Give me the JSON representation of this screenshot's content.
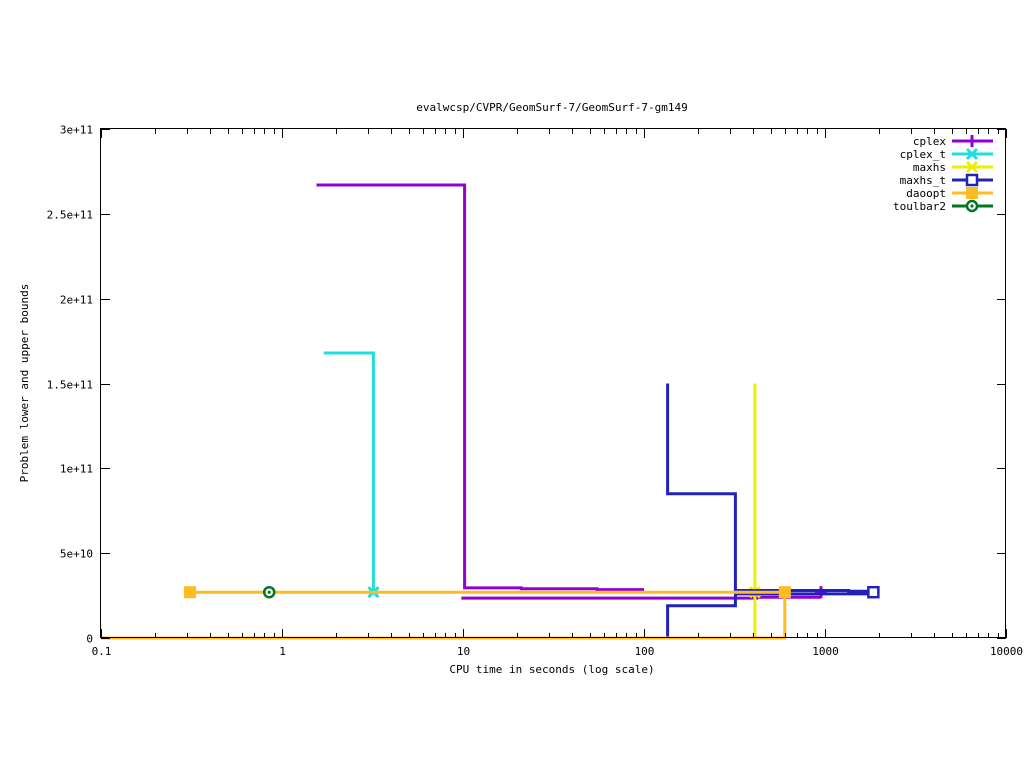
{
  "chart_data": {
    "type": "line",
    "title": "evalwcsp/CVPR/GeomSurf-7/GeomSurf-7-gm149",
    "xlabel": "CPU time in seconds (log scale)",
    "ylabel": "Problem lower and upper bounds",
    "x_scale": "log",
    "xlim": [
      0.1,
      10000
    ],
    "ylim": [
      0,
      300000000000
    ],
    "x_ticks": [
      {
        "value": 0.1,
        "label": "0.1"
      },
      {
        "value": 1,
        "label": "1"
      },
      {
        "value": 10,
        "label": "10"
      },
      {
        "value": 100,
        "label": "100"
      },
      {
        "value": 1000,
        "label": "1000"
      },
      {
        "value": 10000,
        "label": "10000"
      }
    ],
    "y_ticks": [
      {
        "value": 0,
        "label": "0"
      },
      {
        "value": 50000000000,
        "label": "5e+10"
      },
      {
        "value": 100000000000,
        "label": "1e+11"
      },
      {
        "value": 150000000000,
        "label": "1.5e+11"
      },
      {
        "value": 200000000000,
        "label": "2e+11"
      },
      {
        "value": 250000000000,
        "label": "2.5e+11"
      },
      {
        "value": 300000000000,
        "label": "3e+11"
      }
    ],
    "grid": false,
    "legend_position": "top-right",
    "series": [
      {
        "name": "cplex",
        "color": "#9400d3",
        "marker": "plus",
        "upper": [
          [
            1.55,
            267000000000
          ],
          [
            10.2,
            267000000000
          ],
          [
            10.2,
            29500000000
          ],
          [
            21,
            29500000000
          ],
          [
            21,
            29000000000
          ],
          [
            55,
            29000000000
          ],
          [
            55,
            28500000000
          ],
          [
            100,
            28500000000
          ]
        ],
        "lower": [
          [
            9.8,
            23500000000
          ],
          [
            420,
            23500000000
          ],
          [
            420,
            24000000000
          ],
          [
            950,
            24000000000
          ]
        ],
        "markers": [
          [
            950,
            27000000000
          ]
        ]
      },
      {
        "name": "cplex_t",
        "color": "#22dddd",
        "marker": "star",
        "upper": [
          [
            1.7,
            168000000000
          ],
          [
            3.2,
            168000000000
          ],
          [
            3.2,
            27000000000
          ]
        ],
        "lower": [],
        "markers": [
          [
            3.2,
            27000000000
          ]
        ]
      },
      {
        "name": "maxhs",
        "color": "#eeee00",
        "marker": "star",
        "upper": [
          [
            410,
            150000000000
          ],
          [
            410,
            27000000000
          ]
        ],
        "lower": [
          [
            0.1,
            0
          ],
          [
            410,
            0
          ],
          [
            410,
            27000000000
          ]
        ],
        "markers": [
          [
            410,
            27000000000
          ]
        ]
      },
      {
        "name": "maxhs_t",
        "color": "#2222bb",
        "marker": "open-square",
        "upper": [
          [
            135,
            150000000000
          ],
          [
            135,
            85000000000
          ],
          [
            320,
            85000000000
          ],
          [
            320,
            28000000000
          ],
          [
            1350,
            28000000000
          ],
          [
            1350,
            27500000000
          ],
          [
            1850,
            27500000000
          ]
        ],
        "lower": [
          [
            135,
            0
          ],
          [
            135,
            19000000000
          ],
          [
            320,
            19000000000
          ],
          [
            320,
            26000000000
          ],
          [
            1850,
            26000000000
          ]
        ],
        "markers": [
          [
            1850,
            27000000000
          ]
        ]
      },
      {
        "name": "daoopt",
        "color": "#ffbb22",
        "marker": "filled-square",
        "upper": [
          [
            0.31,
            27000000000
          ],
          [
            600,
            27000000000
          ]
        ],
        "lower": [
          [
            0.1,
            0
          ],
          [
            600,
            0
          ],
          [
            600,
            27000000000
          ]
        ],
        "markers": [
          [
            0.31,
            27000000000
          ],
          [
            600,
            27000000000
          ]
        ]
      },
      {
        "name": "toulbar2",
        "color": "#007722",
        "marker": "circle-dot",
        "upper": [],
        "lower": [],
        "markers": [
          [
            0.85,
            27000000000
          ]
        ]
      }
    ]
  }
}
